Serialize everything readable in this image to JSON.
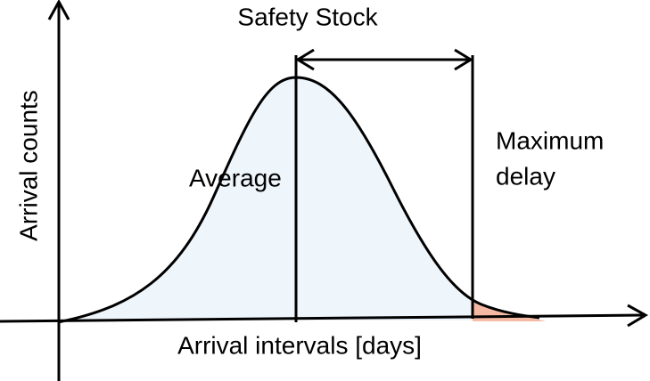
{
  "labels": {
    "title": "Safety Stock",
    "y_axis": "Arrival counts",
    "average": "Average",
    "maximum_delay": [
      "Maximum",
      "delay"
    ],
    "x_axis": "Arrival intervals [days]"
  }
}
